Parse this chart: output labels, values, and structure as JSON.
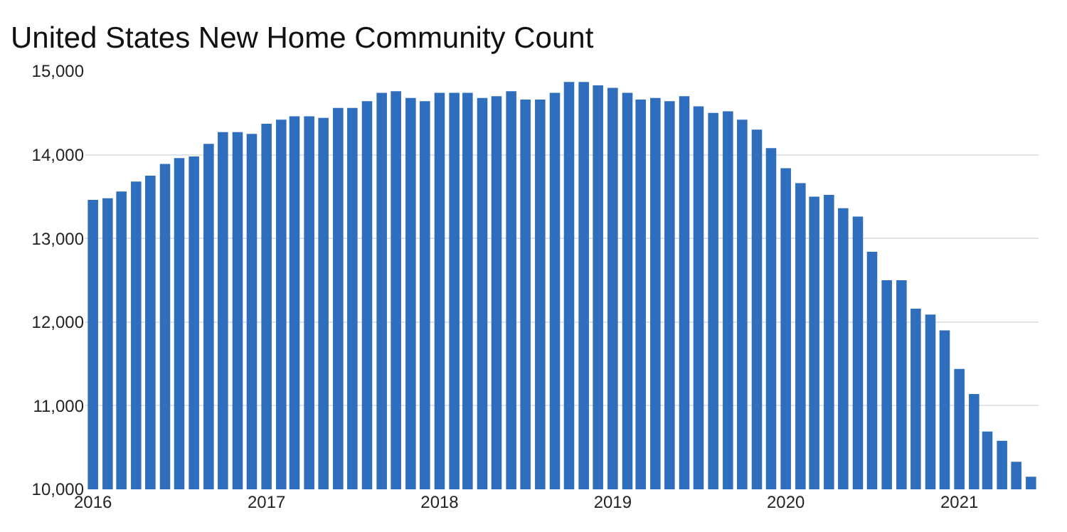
{
  "chart_data": {
    "type": "bar",
    "title": "United States New Home Community Count",
    "x": [
      "2016-01",
      "2016-02",
      "2016-03",
      "2016-04",
      "2016-05",
      "2016-06",
      "2016-07",
      "2016-08",
      "2016-09",
      "2016-10",
      "2016-11",
      "2016-12",
      "2017-01",
      "2017-02",
      "2017-03",
      "2017-04",
      "2017-05",
      "2017-06",
      "2017-07",
      "2017-08",
      "2017-09",
      "2017-10",
      "2017-11",
      "2017-12",
      "2018-01",
      "2018-02",
      "2018-03",
      "2018-04",
      "2018-05",
      "2018-06",
      "2018-07",
      "2018-08",
      "2018-09",
      "2018-10",
      "2018-11",
      "2018-12",
      "2019-01",
      "2019-02",
      "2019-03",
      "2019-04",
      "2019-05",
      "2019-06",
      "2019-07",
      "2019-08",
      "2019-09",
      "2019-10",
      "2019-11",
      "2019-12",
      "2020-01",
      "2020-02",
      "2020-03",
      "2020-04",
      "2020-05",
      "2020-06",
      "2020-07",
      "2020-08",
      "2020-09",
      "2020-10",
      "2020-11",
      "2020-12",
      "2021-01",
      "2021-02",
      "2021-03",
      "2021-04",
      "2021-05",
      "2021-06"
    ],
    "values": [
      13460,
      13480,
      13560,
      13680,
      13750,
      13890,
      13960,
      13980,
      14130,
      14270,
      14270,
      14250,
      14370,
      14420,
      14460,
      14460,
      14440,
      14560,
      14560,
      14640,
      14740,
      14760,
      14680,
      14640,
      14740,
      14740,
      14740,
      14680,
      14700,
      14760,
      14660,
      14660,
      14740,
      14870,
      14870,
      14830,
      14800,
      14740,
      14660,
      14680,
      14640,
      14700,
      14580,
      14500,
      14520,
      14420,
      14300,
      14080,
      13840,
      13660,
      13500,
      13520,
      13360,
      13260,
      12840,
      12500,
      12500,
      12160,
      12090,
      11900,
      11440,
      11140,
      10690,
      10580,
      10330,
      10150
    ],
    "color": "#2f6ebd",
    "xlim": [
      "2015-12-16",
      "2021-06-17"
    ],
    "xticks": [
      "2016",
      "2017",
      "2018",
      "2019",
      "2020",
      "2021"
    ],
    "ylim": [
      10000,
      15000
    ],
    "yticks": [
      {
        "value": 10000,
        "label": "10,000"
      },
      {
        "value": 11000,
        "label": "11,000"
      },
      {
        "value": 12000,
        "label": "12,000"
      },
      {
        "value": 13000,
        "label": "13,000"
      },
      {
        "value": 14000,
        "label": "14,000"
      },
      {
        "value": 15000,
        "label": "15,000"
      }
    ],
    "grid": "y"
  }
}
